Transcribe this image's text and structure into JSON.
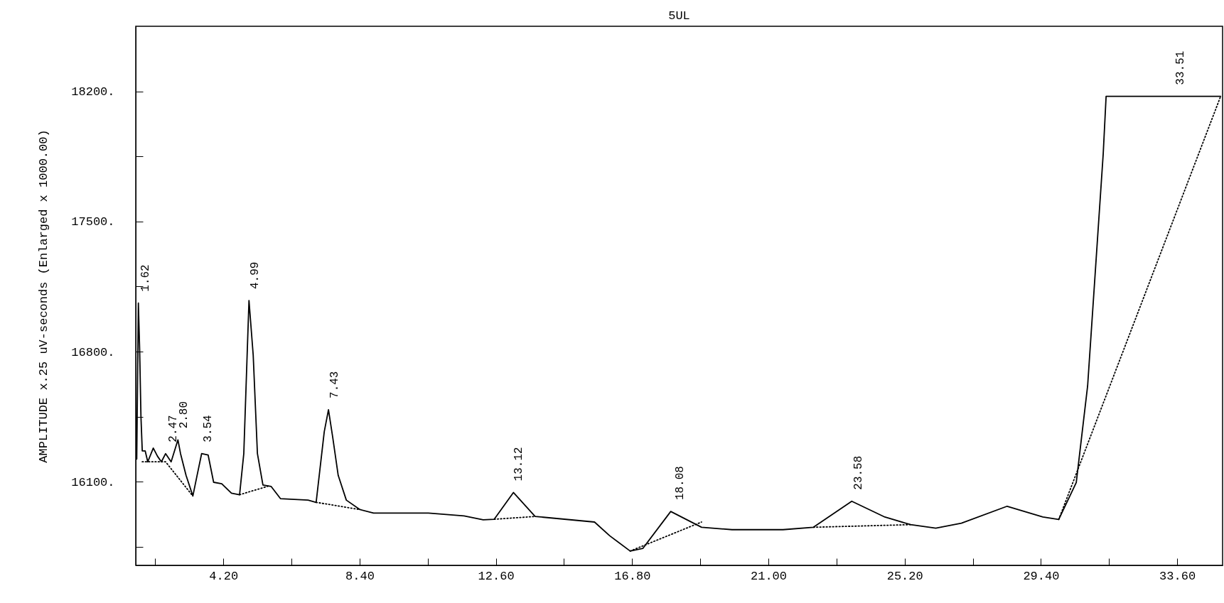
{
  "chart_data": {
    "type": "line",
    "title": "5UL",
    "ylabel": "AMPLITUDE x.25 uV-seconds (Enlarged x 1000.00)",
    "xlim": [
      1.5,
      35.0
    ],
    "ylim": [
      15650,
      18550
    ],
    "xticks": [
      {
        "value": 2.1,
        "label": null
      },
      {
        "value": 4.2,
        "label": "4.20"
      },
      {
        "value": 6.3,
        "label": null
      },
      {
        "value": 8.4,
        "label": "8.40"
      },
      {
        "value": 10.5,
        "label": null
      },
      {
        "value": 12.6,
        "label": "12.60"
      },
      {
        "value": 14.7,
        "label": null
      },
      {
        "value": 16.8,
        "label": "16.80"
      },
      {
        "value": 18.9,
        "label": null
      },
      {
        "value": 21.0,
        "label": "21.00"
      },
      {
        "value": 23.1,
        "label": null
      },
      {
        "value": 25.2,
        "label": "25.20"
      },
      {
        "value": 27.3,
        "label": null
      },
      {
        "value": 29.4,
        "label": "29.40"
      },
      {
        "value": 31.5,
        "label": null
      },
      {
        "value": 33.6,
        "label": "33.60"
      }
    ],
    "yticks": [
      {
        "value": 15750,
        "label": null
      },
      {
        "value": 16100,
        "label": "16100."
      },
      {
        "value": 16450,
        "label": null
      },
      {
        "value": 16800,
        "label": "16800."
      },
      {
        "value": 17150,
        "label": null
      },
      {
        "value": 17500,
        "label": "17500."
      },
      {
        "value": 17850,
        "label": null
      },
      {
        "value": 18200,
        "label": "18200."
      }
    ],
    "grid": false,
    "marker": "none",
    "series": [
      {
        "color": "#000000",
        "line_style": "solid",
        "x": [
          1.53,
          1.58,
          1.62,
          1.66,
          1.7,
          1.79,
          1.87,
          2.04,
          2.17,
          2.29,
          2.42,
          2.59,
          2.8,
          2.88,
          3.05,
          3.26,
          3.39,
          3.53,
          3.73,
          3.9,
          4.15,
          4.45,
          4.7,
          4.83,
          4.99,
          5.12,
          5.25,
          5.42,
          5.67,
          5.96,
          6.81,
          7.06,
          7.31,
          7.44,
          7.57,
          7.74,
          7.99,
          8.41,
          8.83,
          10.52,
          11.62,
          12.21,
          12.55,
          13.14,
          13.81,
          15.64,
          16.11,
          16.74,
          17.13,
          17.99,
          18.94,
          19.88,
          21.45,
          22.39,
          23.57,
          24.59,
          25.38,
          26.16,
          26.95,
          28.36,
          29.46,
          29.95,
          30.49,
          30.84,
          31.08,
          31.32,
          31.41,
          34.94
        ],
        "values": [
          16222,
          17061,
          16810,
          16450,
          16266,
          16266,
          16207,
          16281,
          16237,
          16207,
          16251,
          16207,
          16325,
          16251,
          16134,
          16023,
          16134,
          16251,
          16244,
          16097,
          16089,
          16038,
          16030,
          16251,
          17075,
          16781,
          16251,
          16082,
          16075,
          16009,
          16001,
          15989,
          16369,
          16487,
          16340,
          16134,
          16001,
          15950,
          15931,
          15931,
          15916,
          15895,
          15898,
          16042,
          15913,
          15883,
          15809,
          15727,
          15741,
          15940,
          15855,
          15842,
          15842,
          15855,
          15995,
          15910,
          15869,
          15850,
          15877,
          15968,
          15910,
          15897,
          16096,
          16615,
          17238,
          17862,
          18173,
          18173
        ]
      },
      {
        "color": "#000000",
        "line_style": "dotted",
        "x": [
          1.7,
          2.42,
          3.26,
          3.3,
          4.7,
          5.62,
          5.7,
          7.06,
          8.41,
          8.5,
          12.55,
          13.81,
          13.9,
          16.74,
          18.94,
          19.0,
          22.39,
          25.38,
          25.5,
          29.95,
          34.94
        ],
        "values": [
          16207,
          16207,
          16023,
          null,
          16030,
          16078,
          null,
          15989,
          15950,
          null,
          15898,
          15913,
          null,
          15727,
          15883,
          null,
          15855,
          15869,
          null,
          15897,
          18173
        ]
      }
    ],
    "annotations": [
      {
        "text": "1.62",
        "x": 1.62,
        "y": 17061
      },
      {
        "text": "2.47",
        "x": 2.47,
        "y": 16251
      },
      {
        "text": "2.80",
        "x": 2.8,
        "y": 16325
      },
      {
        "text": "3.54",
        "x": 3.54,
        "y": 16251
      },
      {
        "text": "4.99",
        "x": 4.99,
        "y": 17075
      },
      {
        "text": "7.43",
        "x": 7.43,
        "y": 16487
      },
      {
        "text": "13.12",
        "x": 13.12,
        "y": 16042
      },
      {
        "text": "18.08",
        "x": 18.08,
        "y": 15940
      },
      {
        "text": "23.58",
        "x": 23.58,
        "y": 15995
      },
      {
        "text": "33.51",
        "x": 33.51,
        "y": 18173
      }
    ]
  }
}
